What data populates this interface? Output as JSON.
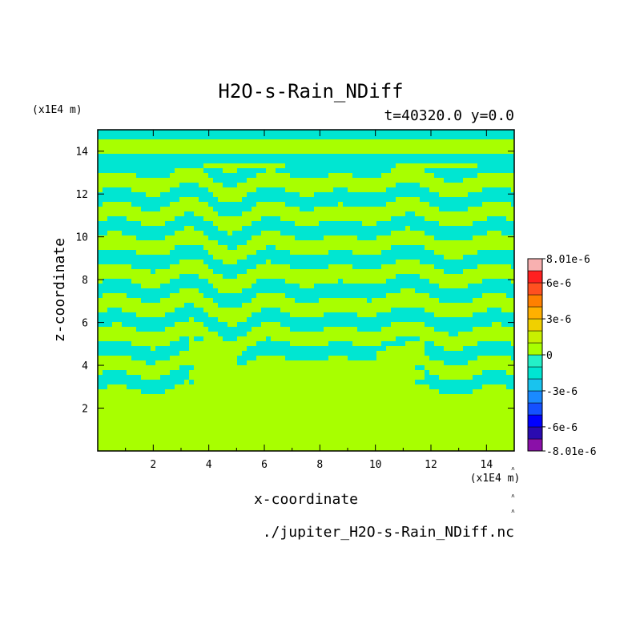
{
  "chart_data": {
    "type": "heatmap",
    "title": "H2O-s-Rain_NDiff",
    "subtitle": "t=40320.0 y=0.0",
    "xlabel": "x-coordinate",
    "ylabel": "z-coordinate",
    "x_unit_label": "(x1E4 m)",
    "y_unit_label": "(x1E4 m)",
    "source_file": "./jupiter_H2O-s-Rain_NDiff.nc",
    "xlim": [
      0,
      15
    ],
    "ylim": [
      0,
      15
    ],
    "x_ticks": [
      2,
      4,
      6,
      8,
      10,
      12,
      14
    ],
    "y_ticks": [
      2,
      4,
      6,
      8,
      10,
      12,
      14
    ],
    "x_tick_labels": [
      "2",
      "4",
      "6",
      "8",
      "10",
      "12",
      "14"
    ],
    "y_tick_labels": [
      "2",
      "4",
      "6",
      "8",
      "10",
      "12",
      "14"
    ],
    "colorbar": {
      "labels": [
        "8.01e-6",
        "6e-6",
        "3e-6",
        "0",
        "-3e-6",
        "-6e-6",
        "-8.01e-6"
      ],
      "levels": [
        -8.01e-06,
        -7e-06,
        -6e-06,
        -5e-06,
        -4e-06,
        -3e-06,
        -2e-06,
        -1e-06,
        0,
        1e-06,
        2e-06,
        3e-06,
        4e-06,
        5e-06,
        6e-06,
        7e-06,
        8.01e-06
      ],
      "colors": [
        "#8a10a8",
        "#2a0ab0",
        "#0000ff",
        "#1450ff",
        "#1a8aff",
        "#19c3ee",
        "#00e6d2",
        "#23f0c8",
        "#a8ff00",
        "#c8f000",
        "#f0d000",
        "#ffb000",
        "#ff8000",
        "#ff5020",
        "#ff2020",
        "#f8b0b0"
      ]
    },
    "field_description_values": {
      "dominant_value_band": [
        0,
        1e-06
      ],
      "secondary_value_band": [
        -1e-06,
        0
      ]
    },
    "grid": false,
    "legend_placement": "right"
  }
}
